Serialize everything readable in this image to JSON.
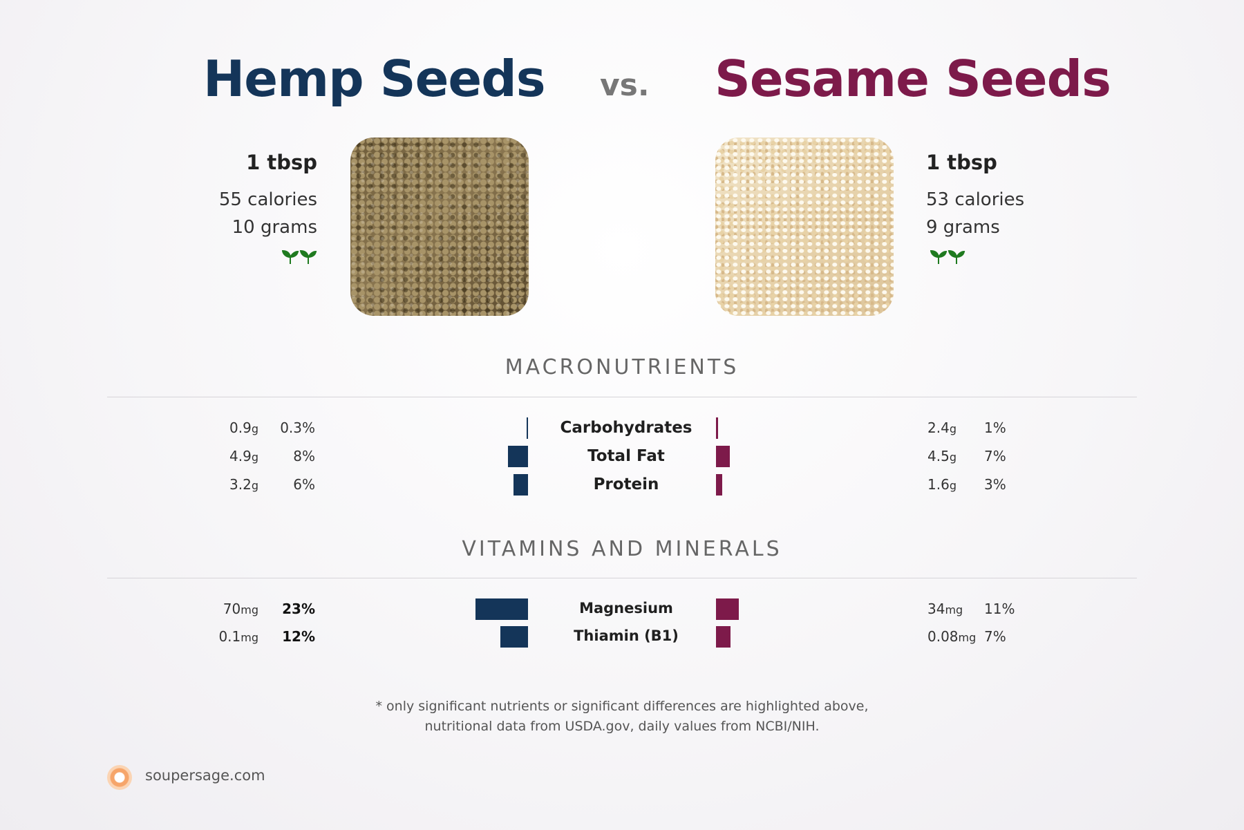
{
  "header": {
    "left_title": "Hemp Seeds",
    "vs": "vs.",
    "right_title": "Sesame Seeds"
  },
  "left_item": {
    "serving": "1 tbsp",
    "calories": "55 calories",
    "grams": "10 grams",
    "icon": "sprout-icon"
  },
  "right_item": {
    "serving": "1 tbsp",
    "calories": "53 calories",
    "grams": "9 grams",
    "icon": "sprout-icon"
  },
  "sections": {
    "macro_title": "MACRONUTRIENTS",
    "vitamins_title": "VITAMINS AND MINERALS"
  },
  "colors": {
    "left": "#143559",
    "right": "#7d1a4a",
    "sprout": "#1f7a1f"
  },
  "chart_data": [
    {
      "type": "bar",
      "title": "MACRONUTRIENTS",
      "categories": [
        "Carbohydrates",
        "Total Fat",
        "Protein"
      ],
      "series": [
        {
          "name": "Hemp Seeds",
          "amounts": [
            "0.9",
            "4.9",
            "3.2"
          ],
          "units": [
            "g",
            "g",
            "g"
          ],
          "values": [
            0.3,
            8,
            6
          ],
          "pct_labels": [
            "0.3%",
            "8%",
            "6%"
          ]
        },
        {
          "name": "Sesame Seeds",
          "amounts": [
            "2.4",
            "4.5",
            "1.6"
          ],
          "units": [
            "g",
            "g",
            "g"
          ],
          "values": [
            1,
            7,
            3
          ],
          "pct_labels": [
            "1%",
            "7%",
            "3%"
          ]
        }
      ]
    },
    {
      "type": "bar",
      "title": "VITAMINS AND MINERALS",
      "categories": [
        "Magnesium",
        "Thiamin (B1)"
      ],
      "series": [
        {
          "name": "Hemp Seeds",
          "amounts": [
            "70",
            "0.1"
          ],
          "units": [
            "mg",
            "mg"
          ],
          "values": [
            23,
            12
          ],
          "pct_labels": [
            "23%",
            "12%"
          ]
        },
        {
          "name": "Sesame Seeds",
          "amounts": [
            "34",
            "0.08"
          ],
          "units": [
            "mg",
            "mg"
          ],
          "values": [
            11,
            7
          ],
          "pct_labels": [
            "11%",
            "7%"
          ]
        }
      ]
    }
  ],
  "footnote": {
    "line1": "* only significant nutrients or significant differences are highlighted above,",
    "line2": "nutritional data from USDA.gov, daily values from NCBI/NIH."
  },
  "footer": {
    "site": "soupersage.com",
    "logo_icon": "soupersage-logo-icon"
  }
}
